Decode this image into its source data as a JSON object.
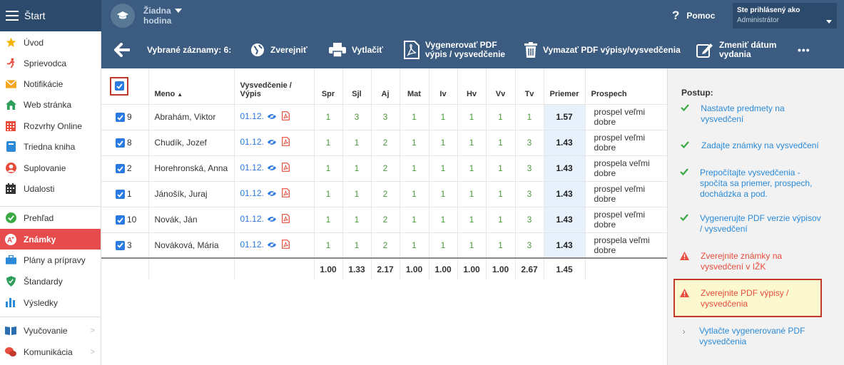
{
  "topbar": {
    "start_label": "Štart",
    "lesson_label": "Žiadna hodina",
    "help_label": "Pomoc",
    "user_line1": "Ste prihlásený ako",
    "user_line2": "Administrátor"
  },
  "sidebar": {
    "items": [
      {
        "label": "Úvod",
        "icon": "star-icon"
      },
      {
        "label": "Sprievodca",
        "icon": "runner-icon"
      },
      {
        "label": "Notifikácie",
        "icon": "envelope-icon"
      },
      {
        "label": "Web stránka",
        "icon": "home-icon"
      },
      {
        "label": "Rozvrhy Online",
        "icon": "calendar-icon"
      },
      {
        "label": "Triedna kniha",
        "icon": "book-icon"
      },
      {
        "label": "Suplovanie",
        "icon": "person-icon"
      },
      {
        "label": "Udalosti",
        "icon": "calendar-dark-icon"
      },
      {
        "label": "Prehľad",
        "icon": "check-circle-icon"
      },
      {
        "label": "Známky",
        "icon": "grade-icon"
      },
      {
        "label": "Plány a prípravy",
        "icon": "briefcase-icon"
      },
      {
        "label": "Štandardy",
        "icon": "shield-icon"
      },
      {
        "label": "Výsledky",
        "icon": "bar-chart-icon"
      },
      {
        "label": "Vyučovanie",
        "icon": "open-book-icon"
      },
      {
        "label": "Komunikácia",
        "icon": "chat-icon"
      }
    ]
  },
  "toolbar": {
    "selected_label": "Vybrané záznamy: 6:",
    "publish_label": "Zverejniť",
    "print_label": "Vytlačiť",
    "generate_pdf_label_1": "Vygenerovať PDF",
    "generate_pdf_label_2": "výpis / vysvedčenie",
    "delete_pdf_label": "Vymazať PDF výpisy/vysvedčenia",
    "change_date_label_1": "Zmeniť dátum",
    "change_date_label_2": "vydania",
    "more_label": "•••"
  },
  "table": {
    "columns": [
      "Meno",
      "Vysvedčenie / Výpis",
      "Spr",
      "Sjl",
      "Aj",
      "Mat",
      "Iv",
      "Hv",
      "Vv",
      "Tv",
      "Priemer",
      "Prospech"
    ],
    "rows": [
      {
        "num": "9",
        "name": "Abrahám, Viktor",
        "date": "01.12.",
        "grades": [
          "1",
          "3",
          "3",
          "1",
          "1",
          "1",
          "1",
          "1"
        ],
        "avg": "1.57",
        "prospech": "prospel veľmi dobre"
      },
      {
        "num": "8",
        "name": "Chudík, Jozef",
        "date": "01.12.",
        "grades": [
          "1",
          "1",
          "2",
          "1",
          "1",
          "1",
          "1",
          "3"
        ],
        "avg": "1.43",
        "prospech": "prospel veľmi dobre"
      },
      {
        "num": "2",
        "name": "Horehronská, Anna",
        "date": "01.12.",
        "grades": [
          "1",
          "1",
          "2",
          "1",
          "1",
          "1",
          "1",
          "3"
        ],
        "avg": "1.43",
        "prospech": "prospela veľmi dobre"
      },
      {
        "num": "1",
        "name": "Jánošík, Juraj",
        "date": "01.12.",
        "grades": [
          "1",
          "1",
          "2",
          "1",
          "1",
          "1",
          "1",
          "3"
        ],
        "avg": "1.43",
        "prospech": "prospel veľmi dobre"
      },
      {
        "num": "10",
        "name": "Novák, Ján",
        "date": "01.12.",
        "grades": [
          "1",
          "1",
          "2",
          "1",
          "1",
          "1",
          "1",
          "3"
        ],
        "avg": "1.43",
        "prospech": "prospel veľmi dobre"
      },
      {
        "num": "3",
        "name": "Nováková, Mária",
        "date": "01.12.",
        "grades": [
          "1",
          "1",
          "2",
          "1",
          "1",
          "1",
          "1",
          "3"
        ],
        "avg": "1.43",
        "prospech": "prospela veľmi dobre"
      }
    ],
    "footer": [
      "1.00",
      "1.33",
      "2.17",
      "1.00",
      "1.00",
      "1.00",
      "1.00",
      "2.67",
      "1.45"
    ]
  },
  "panel": {
    "title": "Postup:",
    "steps": [
      {
        "status": "ok",
        "text": "Nastavte predmety na vysvedčení"
      },
      {
        "status": "ok",
        "text": "Zadajte známky na vysvedčení"
      },
      {
        "status": "ok",
        "text": "Prepočítajte vysvedčenia - spočíta sa priemer, prospech, dochádzka a pod."
      },
      {
        "status": "ok",
        "text": "Vygenerujte PDF verzie výpisov / vysvedčení"
      },
      {
        "status": "warn",
        "text": "Zverejnite známky na vysvedčení v IŽK"
      },
      {
        "status": "warn",
        "text": "Zverejnite PDF výpisy / vysvedčenia"
      },
      {
        "status": "next",
        "text": "Vytlačte vygenerované PDF vysvedčenia"
      }
    ]
  },
  "colors": {
    "header_bg": "#3b5c80",
    "active_item": "#e74c4c",
    "link_blue": "#2a7ae2",
    "grade_green": "#4a9a3a",
    "warn_red": "#e74c3c",
    "ok_green": "#3aa843"
  }
}
